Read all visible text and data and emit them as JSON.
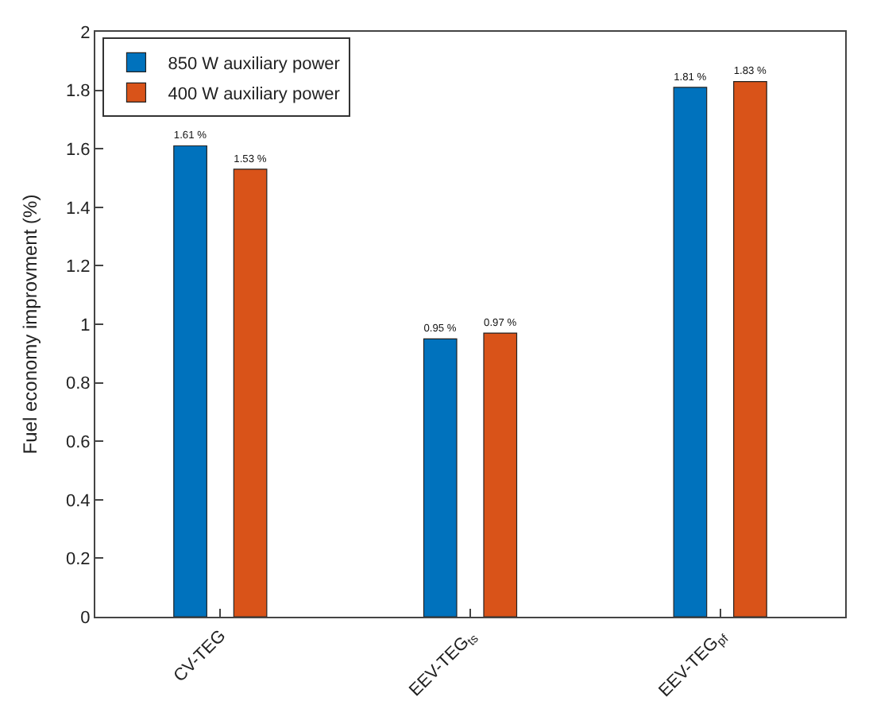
{
  "chart_data": {
    "type": "bar",
    "ylabel": "Fuel economy improvment (%)",
    "categories": [
      "CV-TEG",
      "EEV-TEG$_{ts}$",
      "EEV-TEG$_{pf}$"
    ],
    "series": [
      {
        "name": "850 W auxiliary power",
        "color": "#0072bd",
        "values": [
          1.61,
          0.95,
          1.81
        ],
        "value_labels": [
          "1.61 %",
          "0.95 %",
          "1.81 %"
        ]
      },
      {
        "name": "400 W auxiliary power",
        "color": "#d95319",
        "values": [
          1.53,
          0.97,
          1.83
        ],
        "value_labels": [
          "1.53 %",
          "0.97 %",
          "1.83 %"
        ]
      }
    ],
    "ylim": [
      0,
      2
    ],
    "yticks": [
      0,
      0.2,
      0.4,
      0.6,
      0.8,
      1,
      1.2,
      1.4,
      1.6,
      1.8,
      2
    ],
    "grid": false,
    "legend": "top left"
  }
}
